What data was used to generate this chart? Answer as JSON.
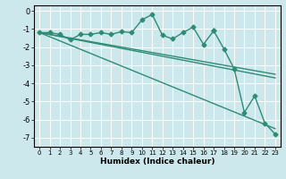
{
  "xlabel": "Humidex (Indice chaleur)",
  "background_color": "#cce8ec",
  "grid_color": "#ffffff",
  "line_color": "#2e8b74",
  "xlim": [
    -0.5,
    23.5
  ],
  "ylim": [
    -7.5,
    0.3
  ],
  "yticks": [
    0,
    -1,
    -2,
    -3,
    -4,
    -5,
    -6,
    -7
  ],
  "xticks": [
    0,
    1,
    2,
    3,
    4,
    5,
    6,
    7,
    8,
    9,
    10,
    11,
    12,
    13,
    14,
    15,
    16,
    17,
    18,
    19,
    20,
    21,
    22,
    23
  ],
  "series": [
    {
      "x": [
        0,
        1,
        2,
        3,
        4,
        5,
        6,
        7,
        8,
        9,
        10,
        11,
        12,
        13,
        14,
        15,
        16,
        17
      ],
      "y": [
        -1.2,
        -1.2,
        -1.3,
        -1.6,
        -1.3,
        -1.3,
        -1.2,
        -1.3,
        -1.15,
        -1.2,
        -0.5,
        -0.2,
        -1.35,
        -1.55,
        -1.2,
        -0.9,
        -1.85,
        -1.1
      ],
      "marker": "D",
      "markersize": 2.5,
      "linewidth": 1.0
    },
    {
      "x": [
        0,
        23
      ],
      "y": [
        -1.2,
        -3.5
      ],
      "marker": null,
      "linewidth": 1.0
    },
    {
      "x": [
        0,
        23
      ],
      "y": [
        -1.2,
        -3.7
      ],
      "marker": null,
      "linewidth": 1.0
    },
    {
      "x": [
        0,
        23
      ],
      "y": [
        -1.2,
        -6.5
      ],
      "marker": null,
      "linewidth": 1.0
    },
    {
      "x": [
        17,
        18,
        19,
        20,
        21,
        22,
        23
      ],
      "y": [
        -1.1,
        -2.1,
        -3.2,
        -5.6,
        -4.7,
        -6.2,
        -6.8
      ],
      "marker": "D",
      "markersize": 2.5,
      "linewidth": 1.0
    }
  ]
}
